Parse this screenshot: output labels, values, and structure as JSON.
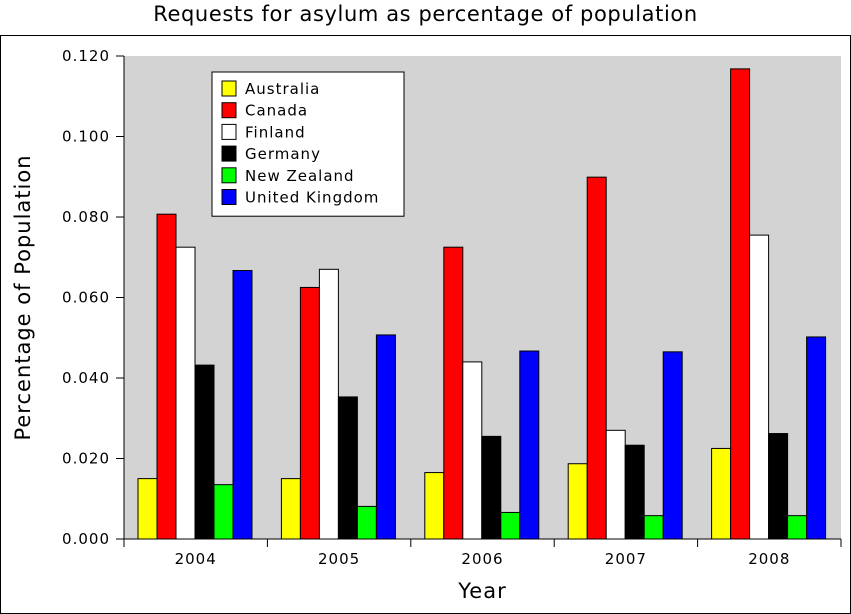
{
  "chart_data": {
    "type": "bar",
    "title": "Requests for asylum as percentage of population",
    "xlabel": "Year",
    "ylabel": "Percentage of Population",
    "categories": [
      "2004",
      "2005",
      "2006",
      "2007",
      "2008"
    ],
    "ylim": [
      0,
      0.12
    ],
    "yticks": [
      "0.000",
      "0.020",
      "0.040",
      "0.060",
      "0.080",
      "0.100",
      "0.120"
    ],
    "grid": false,
    "plot_background": "#d3d3d3",
    "legend_position": "top-left",
    "series": [
      {
        "name": "Australia",
        "color": "#ffff00",
        "values": [
          0.015,
          0.015,
          0.0165,
          0.0187,
          0.0225
        ]
      },
      {
        "name": "Canada",
        "color": "#ff0000",
        "values": [
          0.0807,
          0.0625,
          0.0725,
          0.0899,
          0.1168
        ]
      },
      {
        "name": "Finland",
        "color": "#ffffff",
        "values": [
          0.0725,
          0.067,
          0.044,
          0.027,
          0.0755
        ]
      },
      {
        "name": "Germany",
        "color": "#000000",
        "values": [
          0.0432,
          0.0353,
          0.0255,
          0.0233,
          0.0262
        ]
      },
      {
        "name": "New Zealand",
        "color": "#00ff00",
        "values": [
          0.0135,
          0.0081,
          0.0066,
          0.0058,
          0.0058
        ]
      },
      {
        "name": "United Kingdom",
        "color": "#0000ff",
        "values": [
          0.0667,
          0.0507,
          0.0467,
          0.0465,
          0.0502
        ]
      }
    ]
  }
}
